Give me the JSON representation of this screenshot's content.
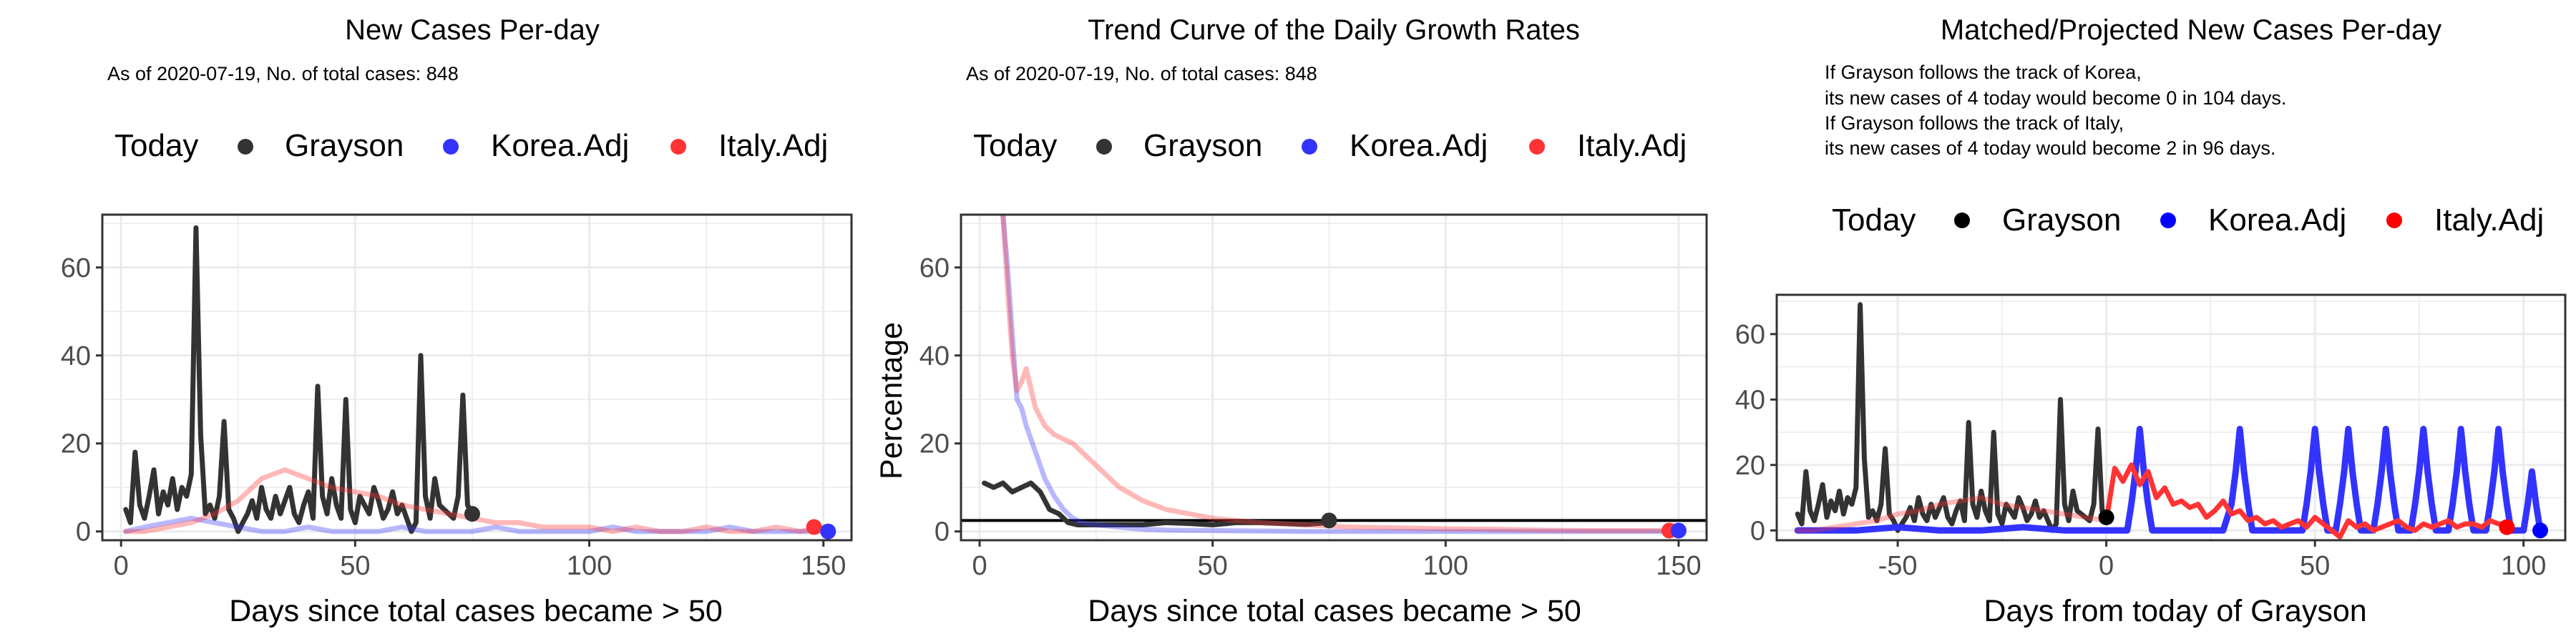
{
  "colors": {
    "grayson": "#333333",
    "korea": "#3333ff",
    "italy": "#ff3333",
    "panel_border": "#333333",
    "grid": "#ebebeb"
  },
  "legend": {
    "title": "Today",
    "entries": [
      "Grayson",
      "Korea.Adj",
      "Italy.Adj"
    ]
  },
  "chart_data": [
    {
      "type": "line",
      "title": "New Cases Per-day",
      "subtitle": [
        "As of 2020-07-19, No. of total cases: 848"
      ],
      "xlabel": "Days since total cases became > 50",
      "ylabel": "",
      "xlim": [
        -4,
        156
      ],
      "ylim": [
        -2,
        72
      ],
      "xticks": [
        0,
        50,
        100,
        150
      ],
      "yticks": [
        0,
        20,
        40,
        60
      ],
      "grid": true,
      "legend_position": "top",
      "series": [
        {
          "name": "Grayson",
          "color": "#333333",
          "opacity": 1.0,
          "width": 7,
          "x": [
            1,
            2,
            3,
            4,
            5,
            6,
            7,
            8,
            9,
            10,
            11,
            12,
            13,
            14,
            15,
            16,
            17,
            18,
            19,
            20,
            21,
            22,
            23,
            24,
            25,
            26,
            27,
            28,
            29,
            30,
            31,
            32,
            33,
            34,
            35,
            36,
            37,
            38,
            39,
            40,
            41,
            42,
            43,
            44,
            45,
            46,
            47,
            48,
            49,
            50,
            51,
            52,
            53,
            54,
            55,
            56,
            57,
            58,
            59,
            60,
            61,
            62,
            63,
            64,
            65,
            66,
            67,
            68,
            69,
            70,
            71,
            72,
            73,
            74,
            75
          ],
          "y": [
            5,
            2,
            18,
            6,
            3,
            8,
            14,
            4,
            9,
            6,
            12,
            5,
            10,
            8,
            13,
            69,
            22,
            4,
            6,
            3,
            8,
            25,
            5,
            3,
            0,
            2,
            4,
            7,
            3,
            10,
            5,
            3,
            8,
            4,
            7,
            10,
            4,
            2,
            6,
            9,
            3,
            33,
            8,
            4,
            12,
            6,
            3,
            30,
            5,
            2,
            8,
            6,
            4,
            10,
            7,
            3,
            5,
            9,
            4,
            6,
            3,
            0,
            2,
            40,
            8,
            3,
            12,
            6,
            5,
            4,
            3,
            8,
            31,
            6,
            4
          ]
        },
        {
          "name": "Korea.Adj",
          "color": "#3333ff",
          "opacity": 0.35,
          "width": 7,
          "x": [
            1,
            5,
            10,
            15,
            20,
            25,
            30,
            35,
            40,
            45,
            50,
            55,
            60,
            65,
            70,
            75,
            80,
            85,
            90,
            95,
            100,
            105,
            110,
            115,
            120,
            125,
            130,
            135,
            140,
            145,
            150
          ],
          "y": [
            0,
            1,
            2,
            3,
            2,
            1,
            0,
            0,
            1,
            0,
            0,
            0,
            1,
            0,
            0,
            0,
            1,
            0,
            0,
            0,
            0,
            1,
            0,
            0,
            0,
            0,
            1,
            0,
            0,
            0,
            0
          ]
        },
        {
          "name": "Italy.Adj",
          "color": "#ff3333",
          "opacity": 0.35,
          "width": 7,
          "x": [
            1,
            5,
            10,
            15,
            20,
            25,
            30,
            35,
            40,
            45,
            50,
            55,
            60,
            65,
            70,
            75,
            80,
            85,
            90,
            95,
            100,
            105,
            110,
            115,
            120,
            125,
            130,
            135,
            140,
            145,
            150
          ],
          "y": [
            0,
            0,
            1,
            2,
            4,
            7,
            12,
            14,
            12,
            10,
            9,
            8,
            6,
            5,
            4,
            3,
            2,
            2,
            1,
            1,
            1,
            0,
            1,
            0,
            0,
            1,
            0,
            0,
            1,
            0,
            1
          ]
        }
      ],
      "points": [
        {
          "x": 75,
          "y": 4,
          "color": "#333333"
        },
        {
          "x": 148,
          "y": 1,
          "color": "#ff3333"
        },
        {
          "x": 151,
          "y": 0,
          "color": "#3333ff"
        }
      ]
    },
    {
      "type": "line",
      "title": "Trend Curve of the Daily Growth Rates",
      "subtitle": [
        "As of 2020-07-19, No. of total cases: 848"
      ],
      "xlabel": "Days since total cases became > 50",
      "ylabel": "Percentage",
      "xlim": [
        -4,
        156
      ],
      "ylim": [
        -2,
        72
      ],
      "xticks": [
        0,
        50,
        100,
        150
      ],
      "yticks": [
        0,
        20,
        40,
        60
      ],
      "grid": true,
      "legend_position": "top",
      "hline": 2.5,
      "series": [
        {
          "name": "Grayson",
          "color": "#333333",
          "opacity": 1.0,
          "width": 7,
          "x": [
            1,
            3,
            5,
            7,
            9,
            11,
            13,
            15,
            17,
            19,
            21,
            25,
            30,
            35,
            40,
            45,
            50,
            55,
            60,
            65,
            70,
            75
          ],
          "y": [
            11,
            10,
            11,
            9,
            10,
            11,
            9,
            5,
            4,
            2,
            1.5,
            1.5,
            1.5,
            1.5,
            2,
            1.8,
            1.5,
            2,
            2,
            1.8,
            1.6,
            2
          ]
        },
        {
          "name": "Korea.Adj",
          "color": "#3333ff",
          "opacity": 0.35,
          "width": 7,
          "x": [
            5,
            6,
            7,
            8,
            9,
            10,
            12,
            14,
            16,
            18,
            20,
            22,
            25,
            30,
            35,
            40,
            50,
            60,
            70,
            80,
            90,
            100,
            110,
            120,
            130,
            140,
            150
          ],
          "y": [
            72,
            60,
            45,
            30,
            28,
            24,
            18,
            12,
            8,
            5,
            3,
            2,
            1.5,
            1,
            0.5,
            0.3,
            0.2,
            0.1,
            0,
            0,
            0,
            0,
            0,
            0,
            0,
            0,
            0
          ]
        },
        {
          "name": "Italy.Adj",
          "color": "#ff3333",
          "opacity": 0.35,
          "width": 7,
          "x": [
            5,
            6,
            7,
            8,
            9,
            10,
            12,
            14,
            16,
            18,
            20,
            22,
            25,
            28,
            30,
            35,
            40,
            45,
            50,
            55,
            60,
            70,
            80,
            90,
            100,
            110,
            120,
            130,
            140,
            148
          ],
          "y": [
            72,
            55,
            40,
            32,
            34,
            37,
            28,
            24,
            22,
            21,
            20,
            18,
            15,
            12,
            10,
            7,
            5,
            4,
            3,
            2.5,
            2,
            1.5,
            1,
            0.8,
            0.6,
            0.5,
            0.3,
            0.2,
            0.2,
            0.2
          ]
        }
      ],
      "points": [
        {
          "x": 75,
          "y": 2.5,
          "color": "#333333"
        },
        {
          "x": 148,
          "y": 0.2,
          "color": "#ff3333"
        },
        {
          "x": 150,
          "y": 0.2,
          "color": "#3333ff"
        }
      ]
    },
    {
      "type": "line",
      "title": "Matched/Projected New Cases Per-day",
      "subtitle": [
        "If Grayson follows the track of Korea,",
        "its new cases of 4 today would become 0 in 104 days.",
        "If Grayson follows the track of Italy,",
        "its new cases of 4 today would become 2 in 96 days."
      ],
      "xlabel": "Days from today of Grayson",
      "ylabel": "",
      "xlim": [
        -79,
        110
      ],
      "ylim": [
        -3,
        72
      ],
      "xticks": [
        -50,
        0,
        50,
        100
      ],
      "yticks": [
        0,
        20,
        40,
        60
      ],
      "grid": true,
      "legend_position": "top",
      "series": [
        {
          "name": "Grayson",
          "color": "#333333",
          "opacity": 1.0,
          "width": 7,
          "x": [
            -74,
            -73,
            -72,
            -71,
            -70,
            -69,
            -68,
            -67,
            -66,
            -65,
            -64,
            -63,
            -62,
            -61,
            -60,
            -59,
            -58,
            -57,
            -56,
            -55,
            -54,
            -53,
            -52,
            -51,
            -50,
            -49,
            -48,
            -47,
            -46,
            -45,
            -44,
            -43,
            -42,
            -41,
            -40,
            -39,
            -38,
            -37,
            -36,
            -35,
            -34,
            -33,
            -32,
            -31,
            -30,
            -29,
            -28,
            -27,
            -26,
            -25,
            -24,
            -23,
            -22,
            -21,
            -20,
            -19,
            -18,
            -17,
            -16,
            -15,
            -14,
            -13,
            -12,
            -11,
            -10,
            -9,
            -8,
            -7,
            -6,
            -5,
            -4,
            -3,
            -2,
            -1,
            0
          ],
          "y": [
            5,
            2,
            18,
            6,
            3,
            8,
            14,
            4,
            9,
            6,
            12,
            5,
            10,
            8,
            13,
            69,
            22,
            4,
            6,
            3,
            8,
            25,
            5,
            3,
            0,
            2,
            4,
            7,
            3,
            10,
            5,
            3,
            8,
            4,
            7,
            10,
            4,
            2,
            6,
            9,
            3,
            33,
            8,
            4,
            12,
            6,
            3,
            30,
            5,
            2,
            8,
            6,
            4,
            10,
            7,
            3,
            5,
            9,
            4,
            6,
            3,
            0,
            2,
            40,
            8,
            3,
            12,
            6,
            5,
            4,
            3,
            8,
            31,
            6,
            4
          ]
        },
        {
          "name": "Korea.Adj",
          "color": "#3333ff",
          "opacity": 1.0,
          "width": 9,
          "x": [
            -74,
            -60,
            -50,
            -40,
            -30,
            -20,
            -10,
            0,
            3,
            5,
            6,
            7,
            8,
            9,
            10,
            11,
            12,
            14,
            20,
            28,
            30,
            31,
            32,
            33,
            34,
            35,
            36,
            38,
            45,
            47,
            48,
            49,
            50,
            51,
            52,
            53,
            55,
            56,
            57,
            58,
            59,
            60,
            61,
            62,
            64,
            65,
            66,
            67,
            68,
            69,
            70,
            71,
            73,
            74,
            75,
            76,
            77,
            78,
            79,
            80,
            82,
            83,
            84,
            85,
            86,
            87,
            88,
            89,
            91,
            92,
            93,
            94,
            95,
            96,
            97,
            98,
            100,
            101,
            102,
            103,
            104
          ],
          "y": [
            0,
            0,
            1,
            0,
            0,
            1,
            0,
            0,
            0,
            0,
            8,
            18,
            31,
            18,
            8,
            0,
            0,
            0,
            0,
            0,
            8,
            18,
            31,
            18,
            8,
            0,
            0,
            0,
            0,
            0,
            8,
            18,
            31,
            18,
            8,
            0,
            0,
            8,
            18,
            31,
            18,
            8,
            0,
            0,
            0,
            8,
            18,
            31,
            18,
            8,
            0,
            0,
            0,
            8,
            18,
            31,
            18,
            8,
            0,
            0,
            0,
            8,
            18,
            31,
            18,
            8,
            0,
            0,
            0,
            8,
            18,
            31,
            18,
            8,
            0,
            0,
            0,
            8,
            18,
            8,
            0
          ]
        },
        {
          "name": "Italy.Adj",
          "color": "#ff3333",
          "opacity": 0.35,
          "width": 7,
          "x": [
            -74,
            -70,
            -65,
            -60,
            -55,
            -50,
            -45,
            -40,
            -35,
            -30,
            -25,
            -20,
            -15,
            -10,
            -5,
            0
          ],
          "y": [
            0,
            0,
            1,
            2,
            3,
            5,
            6,
            8,
            9,
            10,
            8,
            7,
            6,
            5,
            4,
            3
          ]
        },
        {
          "name": "Italy.Adj",
          "color": "#ff3333",
          "opacity": 1.0,
          "width": 7,
          "x": [
            0,
            2,
            4,
            6,
            8,
            10,
            12,
            14,
            16,
            18,
            20,
            22,
            24,
            26,
            28,
            30,
            32,
            34,
            36,
            38,
            40,
            42,
            44,
            46,
            48,
            50,
            52,
            54,
            56,
            58,
            60,
            62,
            64,
            66,
            68,
            70,
            72,
            74,
            76,
            78,
            80,
            82,
            84,
            86,
            88,
            90,
            92,
            94,
            96
          ],
          "y": [
            3,
            19,
            15,
            20,
            14,
            18,
            10,
            13,
            8,
            9,
            7,
            8,
            4,
            6,
            9,
            5,
            6,
            3,
            4,
            2,
            3,
            1,
            2,
            3,
            1,
            4,
            2,
            0,
            -2,
            3,
            1,
            2,
            0,
            1,
            2,
            3,
            1,
            0,
            2,
            1,
            2,
            3,
            1,
            2,
            2,
            1,
            3,
            2,
            2
          ]
        }
      ],
      "points": [
        {
          "x": 0,
          "y": 4,
          "color": "#000000"
        },
        {
          "x": 96,
          "y": 1,
          "color": "#ff0000"
        },
        {
          "x": 104,
          "y": 0,
          "color": "#0000ff"
        }
      ]
    }
  ]
}
